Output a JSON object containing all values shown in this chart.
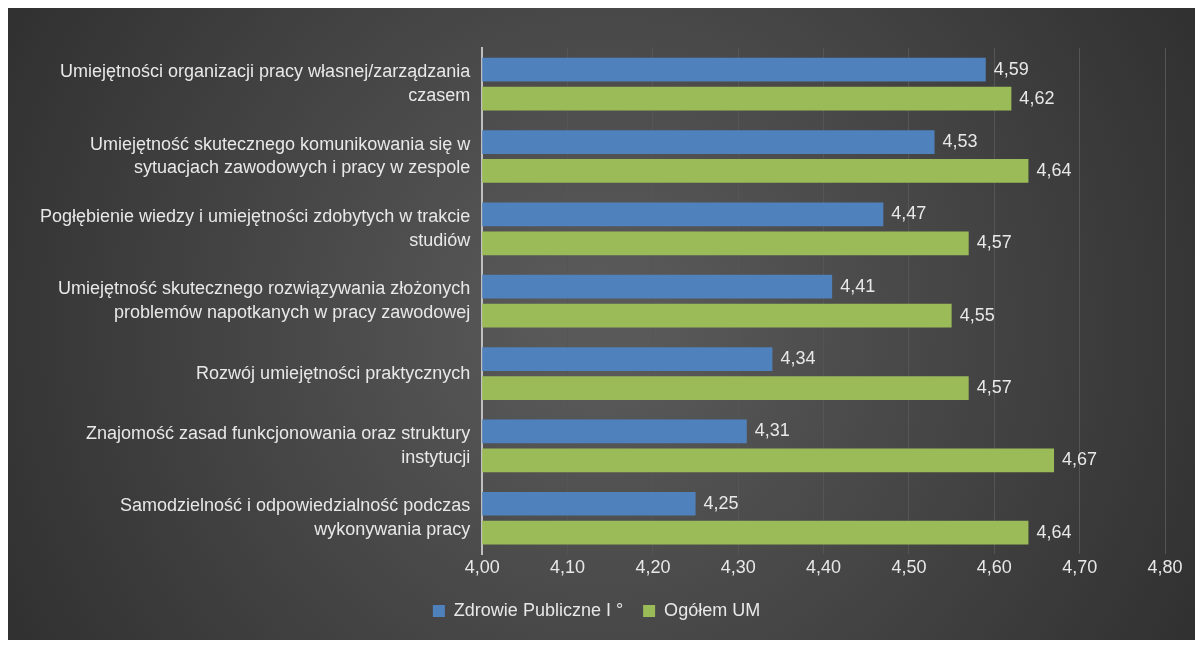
{
  "chart_data": {
    "type": "bar",
    "orientation": "horizontal",
    "categories": [
      "Umiejętności organizacji pracy własnej/zarządzania czasem",
      "Umiejętność skutecznego komunikowania się w sytuacjach zawodowych i pracy w zespole",
      "Pogłębienie wiedzy i umiejętności zdobytych w trakcie studiów",
      "Umiejętność skutecznego rozwiązywania złożonych problemów napotkanych w pracy zawodowej",
      "Rozwój umiejętności praktycznych",
      "Znajomość zasad funkcjonowania oraz struktury instytucji",
      "Samodzielność i odpowiedzialność podczas wykonywania pracy"
    ],
    "series": [
      {
        "name": "Zdrowie Publiczne I °",
        "color": "#4f81bd",
        "values": [
          4.59,
          4.53,
          4.47,
          4.41,
          4.34,
          4.31,
          4.25
        ],
        "value_labels": [
          "4,59",
          "4,53",
          "4,47",
          "4,41",
          "4,34",
          "4,31",
          "4,25"
        ]
      },
      {
        "name": "Ogółem UM",
        "color": "#9bbb59",
        "values": [
          4.62,
          4.64,
          4.57,
          4.55,
          4.57,
          4.67,
          4.64
        ],
        "value_labels": [
          "4,62",
          "4,64",
          "4,57",
          "4,55",
          "4,57",
          "4,67",
          "4,64"
        ]
      }
    ],
    "xlim": [
      4,
      4.8
    ],
    "xticks": [
      {
        "value": 4,
        "label": "4,00"
      },
      {
        "value": 4.1,
        "label": "4,10"
      },
      {
        "value": 4.2,
        "label": "4,20"
      },
      {
        "value": 4.3,
        "label": "4,30"
      },
      {
        "value": 4.4,
        "label": "4,40"
      },
      {
        "value": 4.5,
        "label": "4,50"
      },
      {
        "value": 4.6,
        "label": "4,60"
      },
      {
        "value": 4.7,
        "label": "4,70"
      },
      {
        "value": 4.8,
        "label": "4,80"
      }
    ],
    "grid": "x",
    "legend": "bottom"
  }
}
